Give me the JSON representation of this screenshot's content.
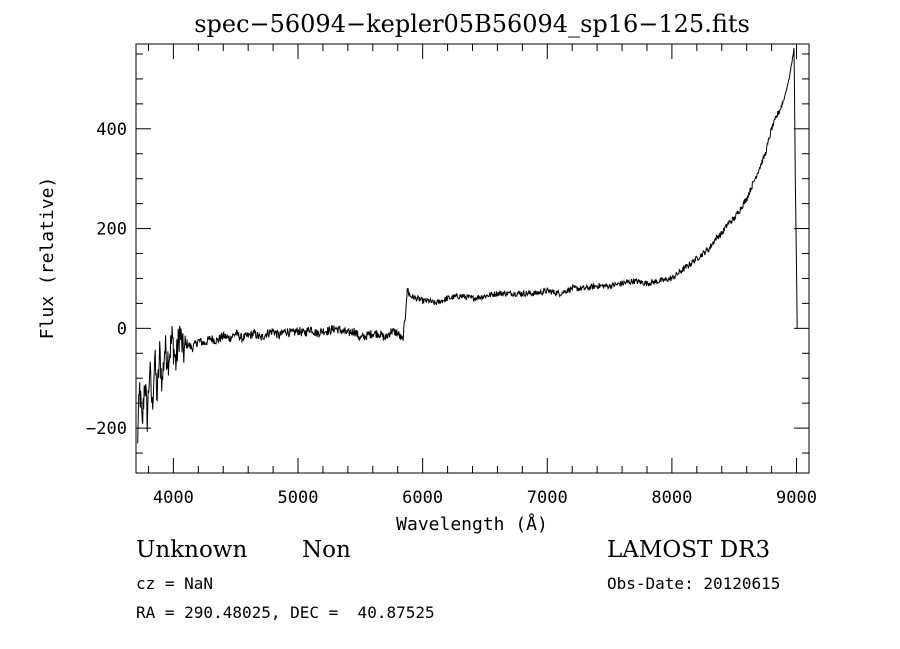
{
  "chart_data": {
    "type": "line",
    "title": "spec−56094−kepler05B56094_sp16−125.fits",
    "xlabel": "Wavelength (Å)",
    "ylabel": "Flux (relative)",
    "xlim": [
      3700,
      9100
    ],
    "ylim": [
      -290,
      570
    ],
    "x_ticks": [
      4000,
      5000,
      6000,
      7000,
      8000,
      9000
    ],
    "x_tick_labels": [
      "4000",
      "5000",
      "6000",
      "7000",
      "8000",
      "9000"
    ],
    "y_ticks": [
      -200,
      0,
      200,
      400
    ],
    "y_tick_labels": [
      "−200",
      "0",
      "200",
      "400"
    ],
    "grid": false,
    "series": [
      {
        "name": "flux",
        "x": [
          3710,
          3730,
          3750,
          3770,
          3790,
          3810,
          3830,
          3850,
          3870,
          3890,
          3910,
          3930,
          3960,
          3990,
          4020,
          4050,
          4080,
          4110,
          4150,
          4200,
          4250,
          4300,
          4350,
          4400,
          4450,
          4500,
          4550,
          4600,
          4650,
          4700,
          4750,
          4800,
          4850,
          4900,
          4950,
          5000,
          5050,
          5100,
          5150,
          5200,
          5250,
          5300,
          5350,
          5400,
          5450,
          5500,
          5550,
          5600,
          5650,
          5700,
          5750,
          5800,
          5840,
          5860,
          5870,
          5880,
          5890,
          5900,
          5950,
          6000,
          6050,
          6100,
          6150,
          6200,
          6300,
          6400,
          6500,
          6600,
          6700,
          6800,
          6900,
          7000,
          7100,
          7200,
          7300,
          7400,
          7500,
          7600,
          7700,
          7800,
          7900,
          8000,
          8100,
          8200,
          8300,
          8350,
          8400,
          8450,
          8500,
          8550,
          8600,
          8650,
          8700,
          8750,
          8800,
          8850,
          8870,
          8900,
          8920,
          8940,
          8960,
          8980,
          8990,
          9000,
          9005
        ],
        "y": [
          -240,
          -120,
          -200,
          -100,
          -180,
          -80,
          -160,
          -60,
          -140,
          -50,
          -110,
          -40,
          -60,
          -20,
          -70,
          -5,
          -50,
          -30,
          -40,
          -25,
          -30,
          -20,
          -25,
          -15,
          -20,
          -10,
          -20,
          -15,
          -10,
          -20,
          -10,
          -5,
          -15,
          -5,
          -10,
          -5,
          -10,
          0,
          -10,
          -5,
          -5,
          0,
          -5,
          -10,
          -5,
          -20,
          -15,
          -10,
          -10,
          -20,
          -5,
          -10,
          -25,
          20,
          60,
          80,
          70,
          65,
          60,
          55,
          55,
          50,
          55,
          60,
          65,
          60,
          65,
          70,
          70,
          70,
          70,
          75,
          70,
          80,
          80,
          85,
          85,
          90,
          95,
          90,
          95,
          100,
          120,
          140,
          160,
          180,
          190,
          210,
          220,
          240,
          260,
          290,
          320,
          350,
          400,
          430,
          440,
          460,
          480,
          500,
          530,
          560,
          300,
          120,
          0
        ]
      }
    ]
  },
  "annotations": {
    "class_label": "Unknown",
    "subclass_label": "Non",
    "survey": "LAMOST DR3",
    "cz": "cz = NaN",
    "obs_date": "Obs-Date: 20120615",
    "coords": "RA = 290.48025, DEC =  40.87525"
  }
}
